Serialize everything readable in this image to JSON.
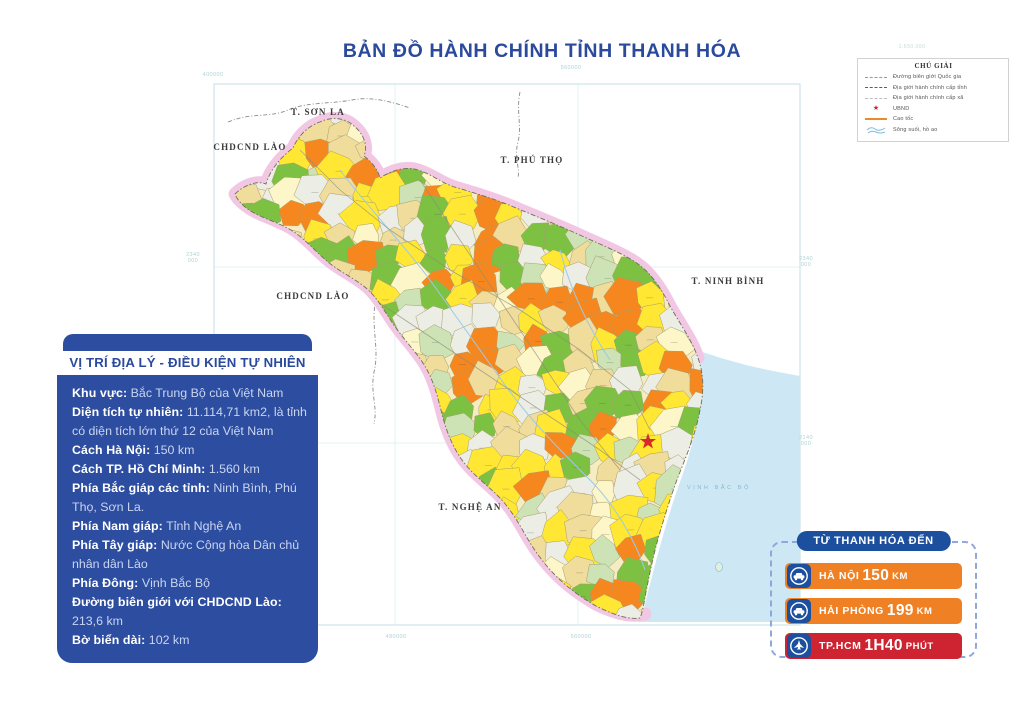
{
  "title": "BẢN ĐỒ HÀNH CHÍNH TỈNH THANH HÓA",
  "scale_note": "1:650.000",
  "legend": {
    "title": "CHÚ GIẢI",
    "items": [
      {
        "symbol": "national-border-line",
        "label": "Đường biên giới Quốc gia"
      },
      {
        "symbol": "province-border-line",
        "label": "Địa giới hành chính cấp tỉnh"
      },
      {
        "symbol": "commune-border-line",
        "label": "Địa giới hành chính cấp xã"
      },
      {
        "symbol": "red-star",
        "label": "UBND"
      },
      {
        "symbol": "highway-line",
        "label": "Cao tốc"
      },
      {
        "symbol": "river-lines",
        "label": "Sông suối, hồ ao"
      }
    ]
  },
  "info_panel": {
    "header": "VỊ TRÍ ĐỊA LÝ - ĐIỀU KIỆN TỰ NHIÊN",
    "entries": [
      {
        "label": "Khu vực:",
        "value": "Bắc Trung Bộ của Việt Nam"
      },
      {
        "label": "Diện tích tự nhiên:",
        "value": "11.114,71 km2, là tỉnh có diện tích lớn thứ 12 của Việt Nam"
      },
      {
        "label": "Cách Hà Nội:",
        "value": "150 km"
      },
      {
        "label": "Cách TP. Hồ Chí Minh:",
        "value": "1.560 km"
      },
      {
        "label": "Phía Bắc giáp các tỉnh:",
        "value": "Ninh Bình, Phú Thọ, Sơn La."
      },
      {
        "label": "Phía Nam giáp:",
        "value": "Tỉnh Nghệ An"
      },
      {
        "label": "Phía Tây giáp:",
        "value": "Nước Cộng hòa Dân chủ nhân dân Lào"
      },
      {
        "label": "Phía Đông:",
        "value": "Vịnh Bắc Bộ"
      },
      {
        "label": "Đường biên giới với CHDCND Lào:",
        "value": "213,6 km"
      },
      {
        "label": "Bờ biển dài:",
        "value": "102 km"
      }
    ]
  },
  "distance_panel": {
    "header": "TỪ THANH HÓA ĐẾN",
    "routes": [
      {
        "icon": "car-icon",
        "place": "HÀ NỘI",
        "value": "150",
        "unit": "KM",
        "color": "#EF8124"
      },
      {
        "icon": "car-icon",
        "place": "HẢI PHÒNG",
        "value": "199",
        "unit": "KM",
        "color": "#EF8124"
      },
      {
        "icon": "plane-icon",
        "place": "TP.HCM",
        "value": "1H40",
        "unit": "PHÚT",
        "color": "#CE2330"
      }
    ]
  },
  "map": {
    "neighbor_labels": [
      "T. SƠN LA",
      "CHDCND LÀO",
      "T. PHÚ THỌ",
      "T. NINH BÌNH",
      "CHDCND LÀO",
      "T. NGHỆ AN"
    ],
    "sea_label": "VỊNH BẮC BỘ",
    "coordinates": {
      "top": [
        "400000",
        "560000"
      ],
      "bottom": [
        "480000",
        "560000"
      ],
      "left": [
        "2340 000"
      ],
      "right": [
        "2340 000",
        "2140 000"
      ]
    },
    "colors": {
      "title_blue": "#2b4a9c",
      "panel_blue": "#2c4da0",
      "buffer_pink": "#F2C7E4",
      "sea_blue": "#CDE8F4",
      "frame_teal": "#cfe4e8",
      "mosaic_palette": [
        "#7CC142",
        "#7CC142",
        "#FFE733",
        "#FFE733",
        "#FFE733",
        "#F6871F",
        "#F6871F",
        "#F0DC9B",
        "#F0DC9B",
        "#ECEDE4",
        "#ECEDE4",
        "#FDF6C9",
        "#CDE3B5"
      ],
      "mosaic_base": "#F5ECC2"
    }
  }
}
